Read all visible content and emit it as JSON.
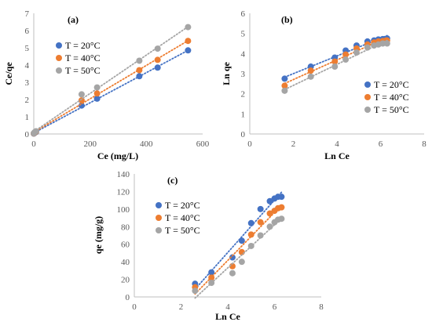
{
  "colors": {
    "T20": "#4472C4",
    "T40": "#ED7D31",
    "T50": "#A5A5A5"
  },
  "chart_data": [
    {
      "panel_label": "(a)",
      "type": "scatter",
      "xlabel": "Ce (mg/L)",
      "ylabel": "Ce/qe",
      "xlim": [
        0,
        600
      ],
      "ylim": [
        0,
        7
      ],
      "xticks": [
        0,
        200,
        400,
        600
      ],
      "yticks": [
        0,
        1,
        2,
        3,
        4,
        5,
        6,
        7
      ],
      "legend_position": "upper-left",
      "trendlines": true,
      "series": [
        {
          "name": "T = 20°C",
          "color_key": "T20",
          "x": [
            0,
            3,
            8,
            170,
            225,
            375,
            440,
            548
          ],
          "y": [
            0.02,
            0.06,
            0.12,
            1.65,
            2.05,
            3.35,
            3.85,
            4.85
          ]
        },
        {
          "name": "T = 40°C",
          "color_key": "T40",
          "x": [
            0,
            3,
            8,
            170,
            225,
            375,
            440,
            548
          ],
          "y": [
            0.03,
            0.08,
            0.14,
            1.95,
            2.35,
            3.7,
            4.3,
            5.4
          ]
        },
        {
          "name": "T = 50°C",
          "color_key": "T50",
          "x": [
            0,
            3,
            8,
            170,
            225,
            375,
            440,
            548
          ],
          "y": [
            0.04,
            0.1,
            0.16,
            2.3,
            2.7,
            4.25,
            4.95,
            6.2
          ]
        }
      ]
    },
    {
      "panel_label": "(b)",
      "type": "scatter",
      "xlabel": "Ln Ce",
      "ylabel": "Ln qe",
      "xlim": [
        0,
        8
      ],
      "ylim": [
        0,
        6
      ],
      "xticks": [
        0,
        2,
        4,
        6,
        8
      ],
      "yticks": [
        0,
        1,
        2,
        3,
        4,
        5,
        6
      ],
      "legend_position": "lower-right",
      "trendlines": true,
      "series": [
        {
          "name": "T = 20°C",
          "color_key": "T20",
          "x": [
            1.6,
            2.8,
            3.9,
            4.4,
            4.9,
            5.4,
            5.7,
            5.9,
            6.1,
            6.3
          ],
          "y": [
            2.75,
            3.35,
            3.8,
            4.15,
            4.4,
            4.6,
            4.65,
            4.7,
            4.72,
            4.75
          ]
        },
        {
          "name": "T = 40°C",
          "color_key": "T40",
          "x": [
            1.6,
            2.8,
            3.9,
            4.4,
            4.9,
            5.4,
            5.7,
            5.9,
            6.1,
            6.3
          ],
          "y": [
            2.4,
            3.15,
            3.6,
            3.95,
            4.25,
            4.45,
            4.55,
            4.6,
            4.62,
            4.65
          ]
        },
        {
          "name": "T = 50°C",
          "color_key": "T50",
          "x": [
            1.6,
            2.8,
            3.9,
            4.4,
            4.9,
            5.4,
            5.7,
            5.9,
            6.1,
            6.3
          ],
          "y": [
            2.15,
            2.85,
            3.35,
            3.7,
            4.05,
            4.3,
            4.4,
            4.45,
            4.5,
            4.5
          ]
        }
      ]
    },
    {
      "panel_label": "(c)",
      "type": "scatter",
      "xlabel": "Ln Ce",
      "ylabel": "qe (mg/g)",
      "xlim": [
        0,
        8
      ],
      "ylim": [
        0,
        140
      ],
      "xticks": [
        0,
        2,
        4,
        6,
        8
      ],
      "yticks": [
        0,
        20,
        40,
        60,
        80,
        100,
        120,
        140
      ],
      "legend_position": "upper-right",
      "trendlines": true,
      "series": [
        {
          "name": "T = 20°C",
          "color_key": "T20",
          "x": [
            2.6,
            3.3,
            4.2,
            4.6,
            5.0,
            5.4,
            5.8,
            6.0,
            6.15,
            6.3
          ],
          "y": [
            15,
            28,
            45,
            64,
            84,
            100,
            109,
            112,
            114,
            114
          ]
        },
        {
          "name": "T = 40°C",
          "color_key": "T40",
          "x": [
            2.6,
            3.3,
            4.2,
            4.6,
            5.0,
            5.4,
            5.8,
            6.0,
            6.15,
            6.3
          ],
          "y": [
            11,
            22,
            35,
            51,
            71,
            85,
            95,
            98,
            101,
            102
          ]
        },
        {
          "name": "T = 50°C",
          "color_key": "T50",
          "x": [
            2.6,
            3.3,
            4.2,
            4.6,
            5.0,
            5.4,
            5.8,
            6.0,
            6.15,
            6.3
          ],
          "y": [
            7,
            16,
            27,
            40,
            58,
            70,
            80,
            85,
            88,
            89
          ]
        }
      ]
    }
  ]
}
